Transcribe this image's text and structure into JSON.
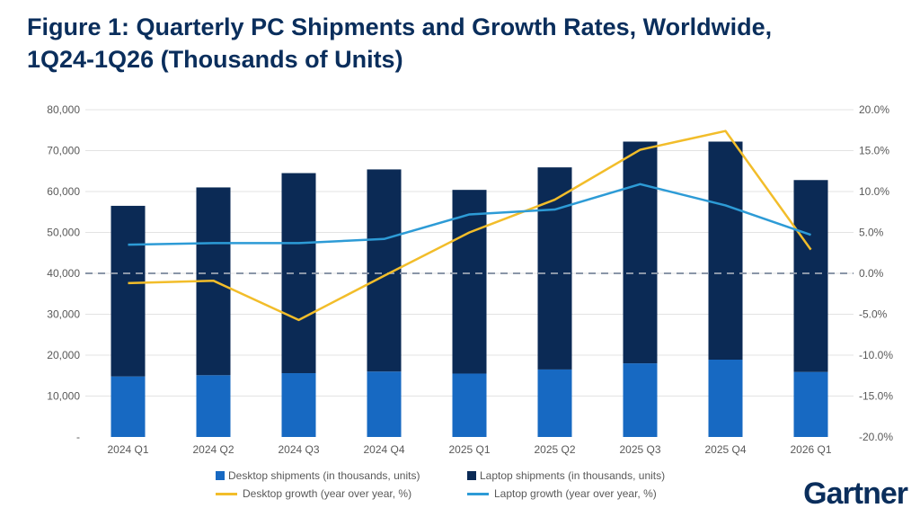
{
  "title": {
    "line1": "Figure 1: Quarterly PC Shipments and Growth Rates, Worldwide,",
    "line2": "1Q24-1Q26 (Thousands of Units)"
  },
  "logo": "Gartner",
  "colors": {
    "desktop_bar": "#1769c2",
    "laptop_bar": "#0b2a55",
    "desktop_growth": "#f2bd2a",
    "laptop_growth": "#2d9bd6",
    "zero_line": "#8a96a8",
    "grid": "#e3e3e3"
  },
  "chart_data": {
    "type": "bar",
    "stacked": true,
    "categories": [
      "2024 Q1",
      "2024 Q2",
      "2024 Q3",
      "2024 Q4",
      "2025 Q1",
      "2025 Q2",
      "2025 Q3",
      "2025 Q4",
      "2026 Q1"
    ],
    "y_left": {
      "ylim": [
        0,
        80000
      ],
      "ticks": [
        0,
        10000,
        20000,
        30000,
        40000,
        50000,
        60000,
        70000,
        80000
      ],
      "tick_labels": [
        "-",
        "10,000",
        "20,000",
        "30,000",
        "40,000",
        "50,000",
        "60,000",
        "70,000",
        "80,000"
      ]
    },
    "y_right": {
      "ylim": [
        -20,
        20
      ],
      "ticks": [
        -20,
        -15,
        -10,
        -5,
        0,
        5,
        10,
        15,
        20
      ],
      "tick_labels": [
        "-20.0%",
        "-15.0%",
        "-10.0%",
        "-5.0%",
        "0.0%",
        "5.0%",
        "10.0%",
        "15.0%",
        "20.0%"
      ]
    },
    "series": [
      {
        "name": "Desktop shipments (in thousands, units)",
        "kind": "bar",
        "axis": "left",
        "values": [
          14800,
          15100,
          15600,
          16000,
          15500,
          16500,
          18000,
          18900,
          15900
        ]
      },
      {
        "name": "Laptop shipments (in thousands, units)",
        "kind": "bar",
        "axis": "left",
        "values": [
          41700,
          45900,
          48900,
          49400,
          44900,
          49400,
          54200,
          53300,
          46900
        ]
      },
      {
        "name": "Desktop growth (year over year, %)",
        "kind": "line",
        "axis": "right",
        "values": [
          -1.2,
          -0.9,
          -5.7,
          -0.3,
          5.0,
          9.0,
          15.1,
          17.4,
          2.9
        ]
      },
      {
        "name": "Laptop growth (year over year, %)",
        "kind": "line",
        "axis": "right",
        "values": [
          3.5,
          3.7,
          3.7,
          4.2,
          7.2,
          7.8,
          10.9,
          8.3,
          4.7
        ]
      }
    ],
    "zero_reference_line": {
      "axis": "right",
      "value": 0,
      "style": "dashed"
    },
    "grid": true,
    "legend_position": "bottom"
  }
}
